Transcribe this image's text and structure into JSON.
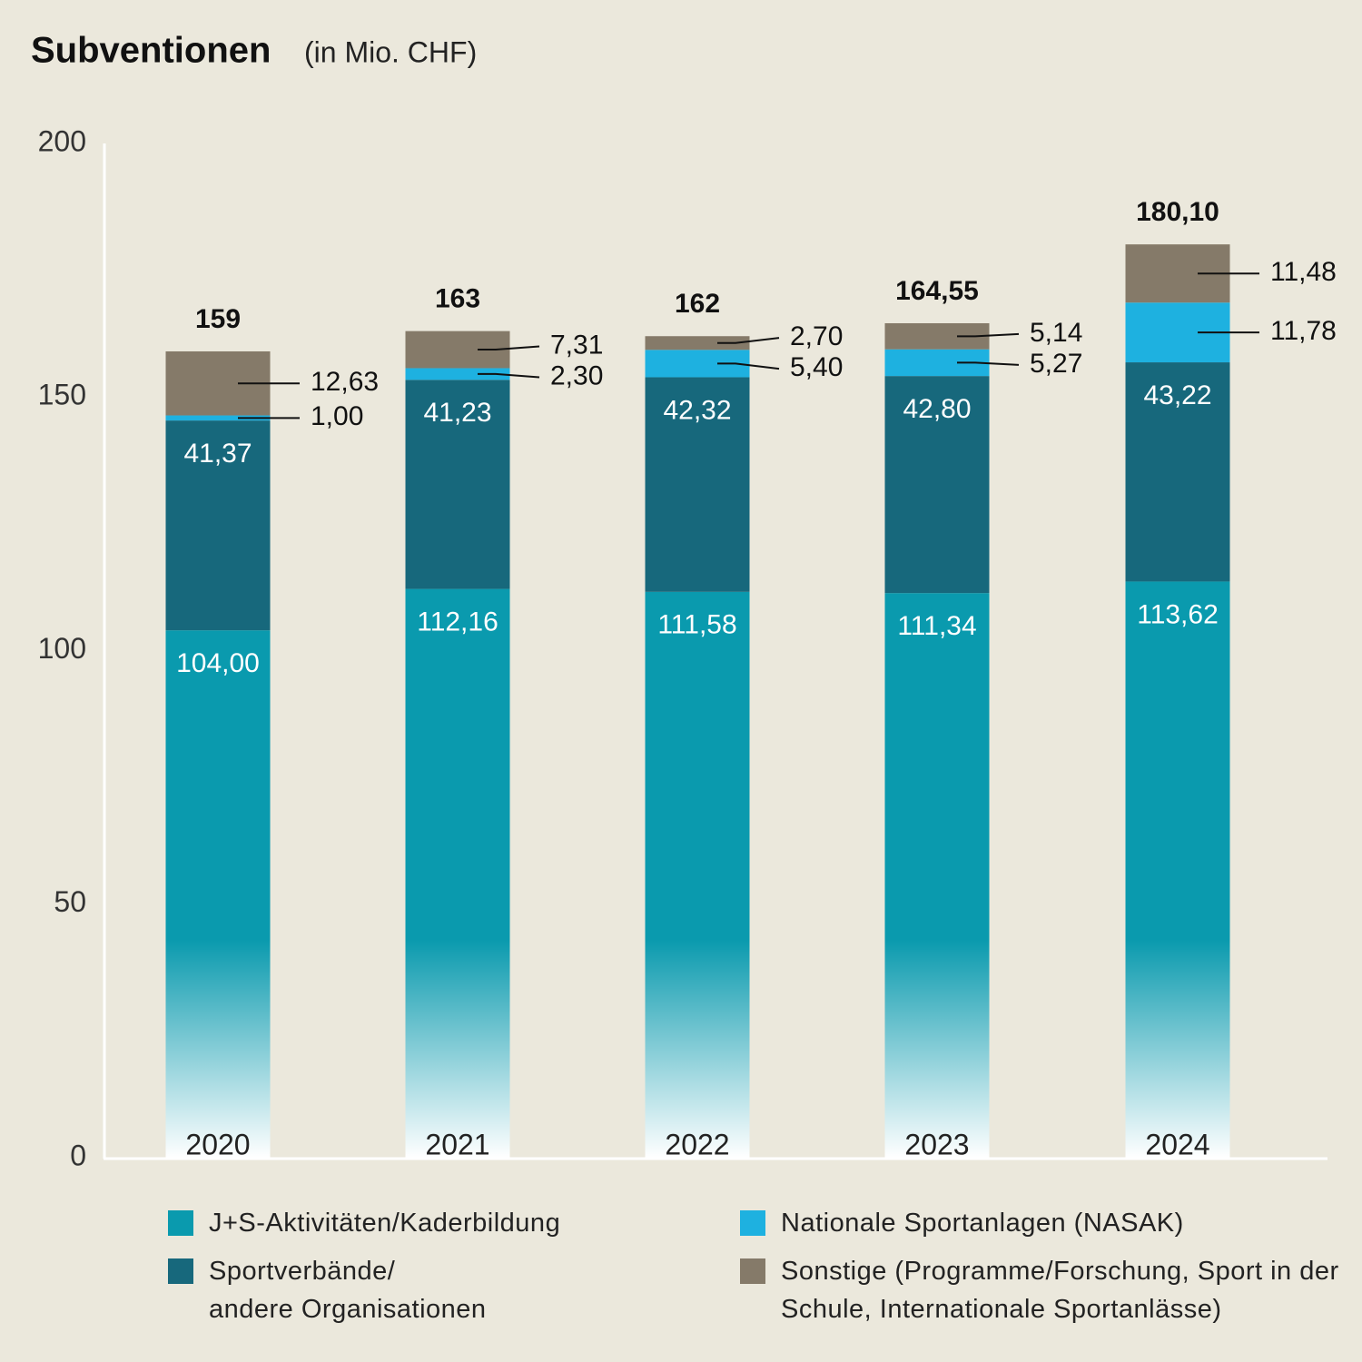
{
  "chart_data": {
    "type": "stacked_bar",
    "title": "Subventionen",
    "subtitle": "(in Mio. CHF)",
    "categories": [
      "2020",
      "2021",
      "2022",
      "2023",
      "2024"
    ],
    "series": [
      {
        "name": "J+S-Aktivitäten/Kaderbildung",
        "color": "#0a9aae",
        "values": [
          104.0,
          112.16,
          111.58,
          111.34,
          113.62
        ],
        "value_labels": [
          "104,00",
          "112,16",
          "111,58",
          "111,34",
          "113,62"
        ]
      },
      {
        "name": "Sportverbände/\nandere Organisationen",
        "color": "#17687c",
        "values": [
          41.37,
          41.23,
          42.32,
          42.8,
          43.22
        ],
        "value_labels": [
          "41,37",
          "41,23",
          "42,32",
          "42,80",
          "43,22"
        ]
      },
      {
        "name": "Nationale Sportanlagen (NASAK)",
        "color": "#1eb1e0",
        "values": [
          1.0,
          2.3,
          5.4,
          5.27,
          11.78
        ],
        "value_labels": [
          "1,00",
          "2,30",
          "5,40",
          "5,27",
          "11,78"
        ]
      },
      {
        "name": "Sonstige (Programme/Forschung, Sport in der Schule, Internationale Sportanlässe)",
        "color": "#857a69",
        "values": [
          12.63,
          7.31,
          2.7,
          5.14,
          11.48
        ],
        "value_labels": [
          "12,63",
          "7,31",
          "2,70",
          "5,14",
          "11,48"
        ]
      }
    ],
    "totals": {
      "values": [
        159,
        163,
        162,
        164.55,
        180.1
      ],
      "value_labels": [
        "159",
        "163",
        "162",
        "164,55",
        "180,10"
      ]
    },
    "ylim": [
      0,
      200
    ],
    "yticks": [
      0,
      50,
      100,
      150,
      200
    ],
    "grid": false
  }
}
